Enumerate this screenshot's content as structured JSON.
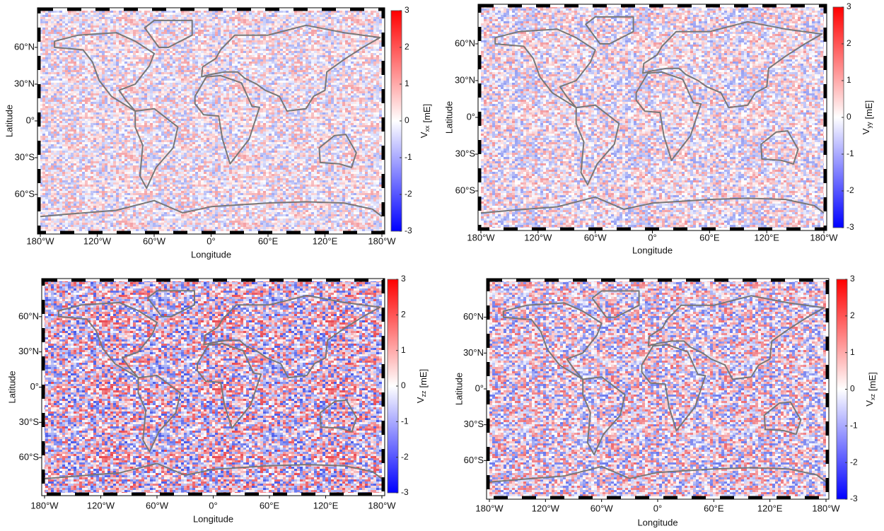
{
  "chart_data": [
    {
      "type": "map",
      "xlabel": "Longitude",
      "ylabel": "Latitude",
      "xlim": [
        -180,
        180
      ],
      "ylim": [
        -90,
        90
      ],
      "xticks": [
        {
          "value": -180,
          "label": "180°W"
        },
        {
          "value": -120,
          "label": "120°W"
        },
        {
          "value": -60,
          "label": "60°W"
        },
        {
          "value": 0,
          "label": "0°"
        },
        {
          "value": 60,
          "label": "60°E"
        },
        {
          "value": 120,
          "label": "120°E"
        },
        {
          "value": 180,
          "label": "180°W"
        }
      ],
      "yticks": [
        {
          "value": 60,
          "label": "60°N"
        },
        {
          "value": 30,
          "label": "30°N"
        },
        {
          "value": 0,
          "label": "0°"
        },
        {
          "value": -30,
          "label": "30°S"
        },
        {
          "value": -60,
          "label": "60°S"
        }
      ],
      "colorbar": {
        "symbol": "V",
        "subscript": "xx",
        "unit": "[mE]",
        "lim": [
          -3,
          3
        ],
        "ticks": [
          -3,
          -2,
          -1,
          0,
          1,
          2,
          3
        ],
        "colors": [
          "#0000ff",
          "#ffffff",
          "#ff0000"
        ]
      }
    },
    {
      "type": "map",
      "xlabel": "Longitude",
      "ylabel": "Latitude",
      "xlim": [
        -180,
        180
      ],
      "ylim": [
        -90,
        90
      ],
      "xticks": [
        {
          "value": -180,
          "label": "180°W"
        },
        {
          "value": -120,
          "label": "120°W"
        },
        {
          "value": -60,
          "label": "60°W"
        },
        {
          "value": 0,
          "label": "0°"
        },
        {
          "value": 60,
          "label": "60°E"
        },
        {
          "value": 120,
          "label": "120°E"
        },
        {
          "value": 180,
          "label": "180°W"
        }
      ],
      "yticks": [
        {
          "value": 60,
          "label": "60°N"
        },
        {
          "value": 30,
          "label": "30°N"
        },
        {
          "value": 0,
          "label": "0°"
        },
        {
          "value": -30,
          "label": "30°S"
        },
        {
          "value": -60,
          "label": "60°S"
        }
      ],
      "colorbar": {
        "symbol": "V",
        "subscript": "yy",
        "unit": "[mE]",
        "lim": [
          -3,
          3
        ],
        "ticks": [
          -3,
          -2,
          -1,
          0,
          1,
          2,
          3
        ],
        "colors": [
          "#0000ff",
          "#ffffff",
          "#ff0000"
        ]
      }
    },
    {
      "type": "map",
      "xlabel": "Longitude",
      "ylabel": "Latitude",
      "xlim": [
        -180,
        180
      ],
      "ylim": [
        -90,
        90
      ],
      "xticks": [
        {
          "value": -180,
          "label": "180°W"
        },
        {
          "value": -120,
          "label": "120°W"
        },
        {
          "value": -60,
          "label": "60°W"
        },
        {
          "value": 0,
          "label": "0°"
        },
        {
          "value": 60,
          "label": "60°E"
        },
        {
          "value": 120,
          "label": "120°E"
        },
        {
          "value": 180,
          "label": "180°W"
        }
      ],
      "yticks": [
        {
          "value": 60,
          "label": "60°N"
        },
        {
          "value": 30,
          "label": "30°N"
        },
        {
          "value": 0,
          "label": "0°"
        },
        {
          "value": -30,
          "label": "30°S"
        },
        {
          "value": -60,
          "label": "60°S"
        }
      ],
      "colorbar": {
        "symbol": "V",
        "subscript": "zz",
        "unit": "[mE]",
        "lim": [
          -3,
          3
        ],
        "ticks": [
          -3,
          -2,
          -1,
          0,
          1,
          2,
          3
        ],
        "colors": [
          "#0000ff",
          "#ffffff",
          "#ff0000"
        ]
      }
    },
    {
      "type": "map",
      "xlabel": "Longitude",
      "ylabel": "Latitude",
      "xlim": [
        -180,
        180
      ],
      "ylim": [
        -90,
        90
      ],
      "xticks": [
        {
          "value": -180,
          "label": "180°W"
        },
        {
          "value": -120,
          "label": "120°W"
        },
        {
          "value": -60,
          "label": "60°W"
        },
        {
          "value": 0,
          "label": "0°"
        },
        {
          "value": 60,
          "label": "60°E"
        },
        {
          "value": 120,
          "label": "120°E"
        },
        {
          "value": 180,
          "label": "180°W"
        }
      ],
      "yticks": [
        {
          "value": 60,
          "label": "60°N"
        },
        {
          "value": 30,
          "label": "30°N"
        },
        {
          "value": 0,
          "label": "0°"
        },
        {
          "value": -30,
          "label": "30°S"
        },
        {
          "value": -60,
          "label": "60°S"
        }
      ],
      "colorbar": {
        "symbol": "V",
        "subscript": "xz",
        "unit": "[mE]",
        "lim": [
          -3,
          3
        ],
        "ticks": [
          -3,
          -2,
          -1,
          0,
          1,
          2,
          3
        ],
        "colors": [
          "#0000ff",
          "#ffffff",
          "#ff0000"
        ]
      }
    }
  ]
}
